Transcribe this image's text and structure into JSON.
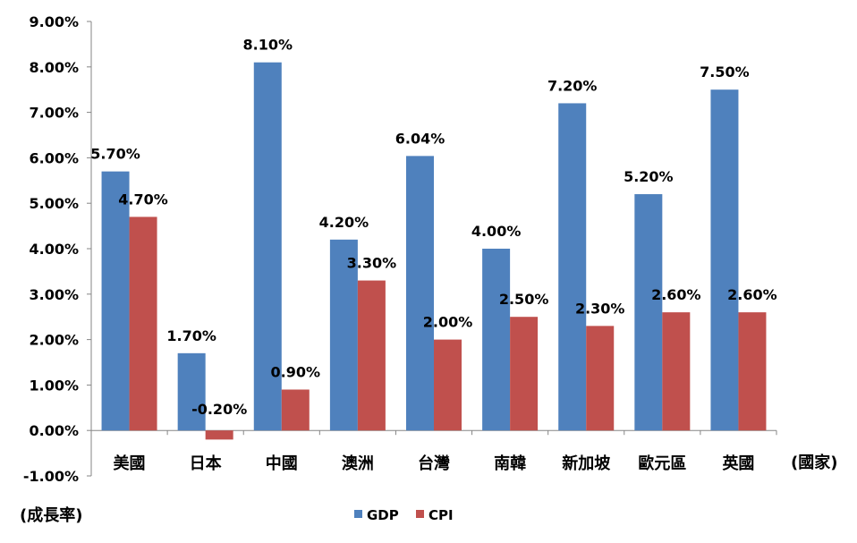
{
  "chart_data": {
    "type": "bar",
    "categories": [
      "美國",
      "日本",
      "中國",
      "澳洲",
      "台灣",
      "南韓",
      "新加坡",
      "歐元區",
      "英國"
    ],
    "series": [
      {
        "name": "GDP",
        "color": "#4F81BD",
        "values": [
          5.7,
          1.7,
          8.1,
          4.2,
          6.04,
          4.0,
          7.2,
          5.2,
          7.5
        ],
        "labels": [
          "5.70%",
          "1.70%",
          "8.10%",
          "4.20%",
          "6.04%",
          "4.00%",
          "7.20%",
          "5.20%",
          "7.50%"
        ]
      },
      {
        "name": "CPI",
        "color": "#C0504D",
        "values": [
          4.7,
          -0.2,
          0.9,
          3.3,
          2.0,
          2.5,
          2.3,
          2.6,
          2.6
        ],
        "labels": [
          "4.70%",
          "-0.20%",
          "0.90%",
          "3.30%",
          "2.00%",
          "2.50%",
          "2.30%",
          "2.60%",
          "2.60%"
        ]
      }
    ],
    "ylim": [
      -1,
      9
    ],
    "yticks": [
      9,
      8,
      7,
      6,
      5,
      4,
      3,
      2,
      1,
      0,
      -1
    ],
    "ytick_labels": [
      "9.00%",
      "8.00%",
      "7.00%",
      "6.00%",
      "5.00%",
      "4.00%",
      "3.00%",
      "2.00%",
      "1.00%",
      "0.00%",
      "-1.00%"
    ],
    "xlabel": "(國家)",
    "ylabel": "(成長率)",
    "grid": false,
    "legend_position": "bottom-center"
  }
}
